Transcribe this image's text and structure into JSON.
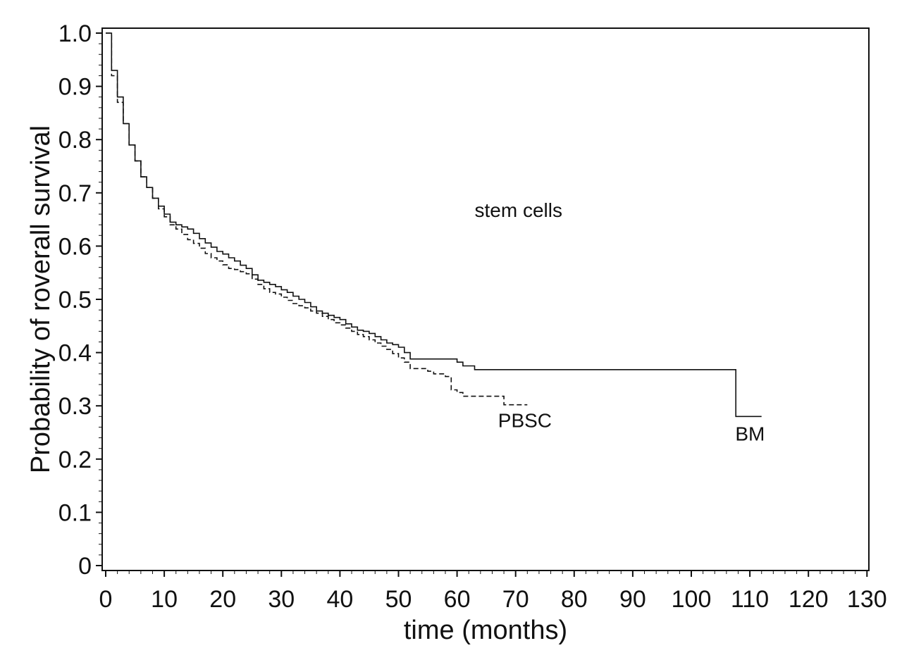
{
  "chart_data": {
    "type": "line",
    "title": "",
    "xlabel": "time (months)",
    "ylabel": "Probability of roverall survival",
    "xlim": [
      0,
      130
    ],
    "ylim": [
      0,
      1.0
    ],
    "xticks": [
      0,
      10,
      20,
      30,
      40,
      50,
      60,
      70,
      80,
      90,
      100,
      110,
      120,
      130
    ],
    "yticks": [
      0,
      0.1,
      0.2,
      0.3,
      0.4,
      0.5,
      0.6,
      0.7,
      0.8,
      0.9,
      1.0
    ],
    "ytick_labels": [
      "0",
      "0.1",
      "0.2",
      "0.3",
      "0.4",
      "0.5",
      "0.6",
      "0.7",
      "0.8",
      "0.9",
      "1.0"
    ],
    "grid": false,
    "legend": "none",
    "annotations": [
      {
        "text": "stem cells",
        "x": 63,
        "y": 0.655
      },
      {
        "text": "PBSC",
        "x": 67,
        "y": 0.26
      },
      {
        "text": "BM",
        "x": 107.5,
        "y": 0.235
      }
    ],
    "series": [
      {
        "name": "BM",
        "style": "solid",
        "x": [
          0,
          1,
          2,
          3,
          4,
          5,
          6,
          7,
          8,
          9,
          10,
          11,
          12,
          13,
          14,
          15,
          16,
          17,
          18,
          19,
          20,
          21,
          22,
          23,
          24,
          25,
          26,
          27,
          28,
          29,
          30,
          31,
          32,
          33,
          34,
          35,
          36,
          37,
          38,
          39,
          40,
          41,
          42,
          43,
          44,
          45,
          46,
          47,
          48,
          49,
          50,
          51,
          52,
          53,
          56,
          59,
          60,
          61,
          63,
          70,
          80,
          90,
          100,
          107.5,
          107.6,
          112
        ],
        "y": [
          1.0,
          0.93,
          0.88,
          0.83,
          0.79,
          0.76,
          0.73,
          0.71,
          0.69,
          0.675,
          0.66,
          0.645,
          0.64,
          0.636,
          0.632,
          0.624,
          0.614,
          0.606,
          0.598,
          0.59,
          0.585,
          0.578,
          0.572,
          0.564,
          0.558,
          0.546,
          0.536,
          0.532,
          0.528,
          0.524,
          0.518,
          0.513,
          0.506,
          0.5,
          0.494,
          0.486,
          0.478,
          0.474,
          0.47,
          0.466,
          0.462,
          0.454,
          0.448,
          0.442,
          0.44,
          0.436,
          0.43,
          0.424,
          0.418,
          0.415,
          0.41,
          0.4,
          0.388,
          0.388,
          0.388,
          0.388,
          0.382,
          0.375,
          0.368,
          0.368,
          0.368,
          0.368,
          0.368,
          0.368,
          0.28,
          0.28
        ]
      },
      {
        "name": "PBSC",
        "style": "dashed",
        "x": [
          0,
          1,
          2,
          3,
          4,
          5,
          6,
          7,
          8,
          9,
          10,
          11,
          12,
          13,
          14,
          15,
          16,
          17,
          18,
          19,
          20,
          21,
          22,
          23,
          24,
          25,
          26,
          27,
          28,
          29,
          30,
          31,
          32,
          33,
          34,
          35,
          36,
          37,
          38,
          39,
          40,
          41,
          42,
          43,
          44,
          45,
          46,
          47,
          48,
          49,
          50,
          51,
          52,
          53,
          54,
          55,
          56,
          57,
          58,
          59,
          60,
          61,
          62,
          64,
          66,
          67,
          68,
          70,
          72
        ],
        "y": [
          1.0,
          0.92,
          0.87,
          0.83,
          0.79,
          0.76,
          0.73,
          0.71,
          0.69,
          0.67,
          0.655,
          0.64,
          0.632,
          0.622,
          0.612,
          0.605,
          0.596,
          0.586,
          0.578,
          0.572,
          0.565,
          0.558,
          0.556,
          0.552,
          0.548,
          0.538,
          0.528,
          0.52,
          0.513,
          0.51,
          0.504,
          0.498,
          0.492,
          0.488,
          0.484,
          0.478,
          0.474,
          0.468,
          0.462,
          0.456,
          0.452,
          0.446,
          0.44,
          0.434,
          0.43,
          0.424,
          0.418,
          0.412,
          0.406,
          0.398,
          0.39,
          0.382,
          0.37,
          0.37,
          0.37,
          0.365,
          0.36,
          0.36,
          0.355,
          0.33,
          0.325,
          0.318,
          0.318,
          0.318,
          0.318,
          0.318,
          0.302,
          0.302,
          0.302
        ]
      }
    ]
  }
}
